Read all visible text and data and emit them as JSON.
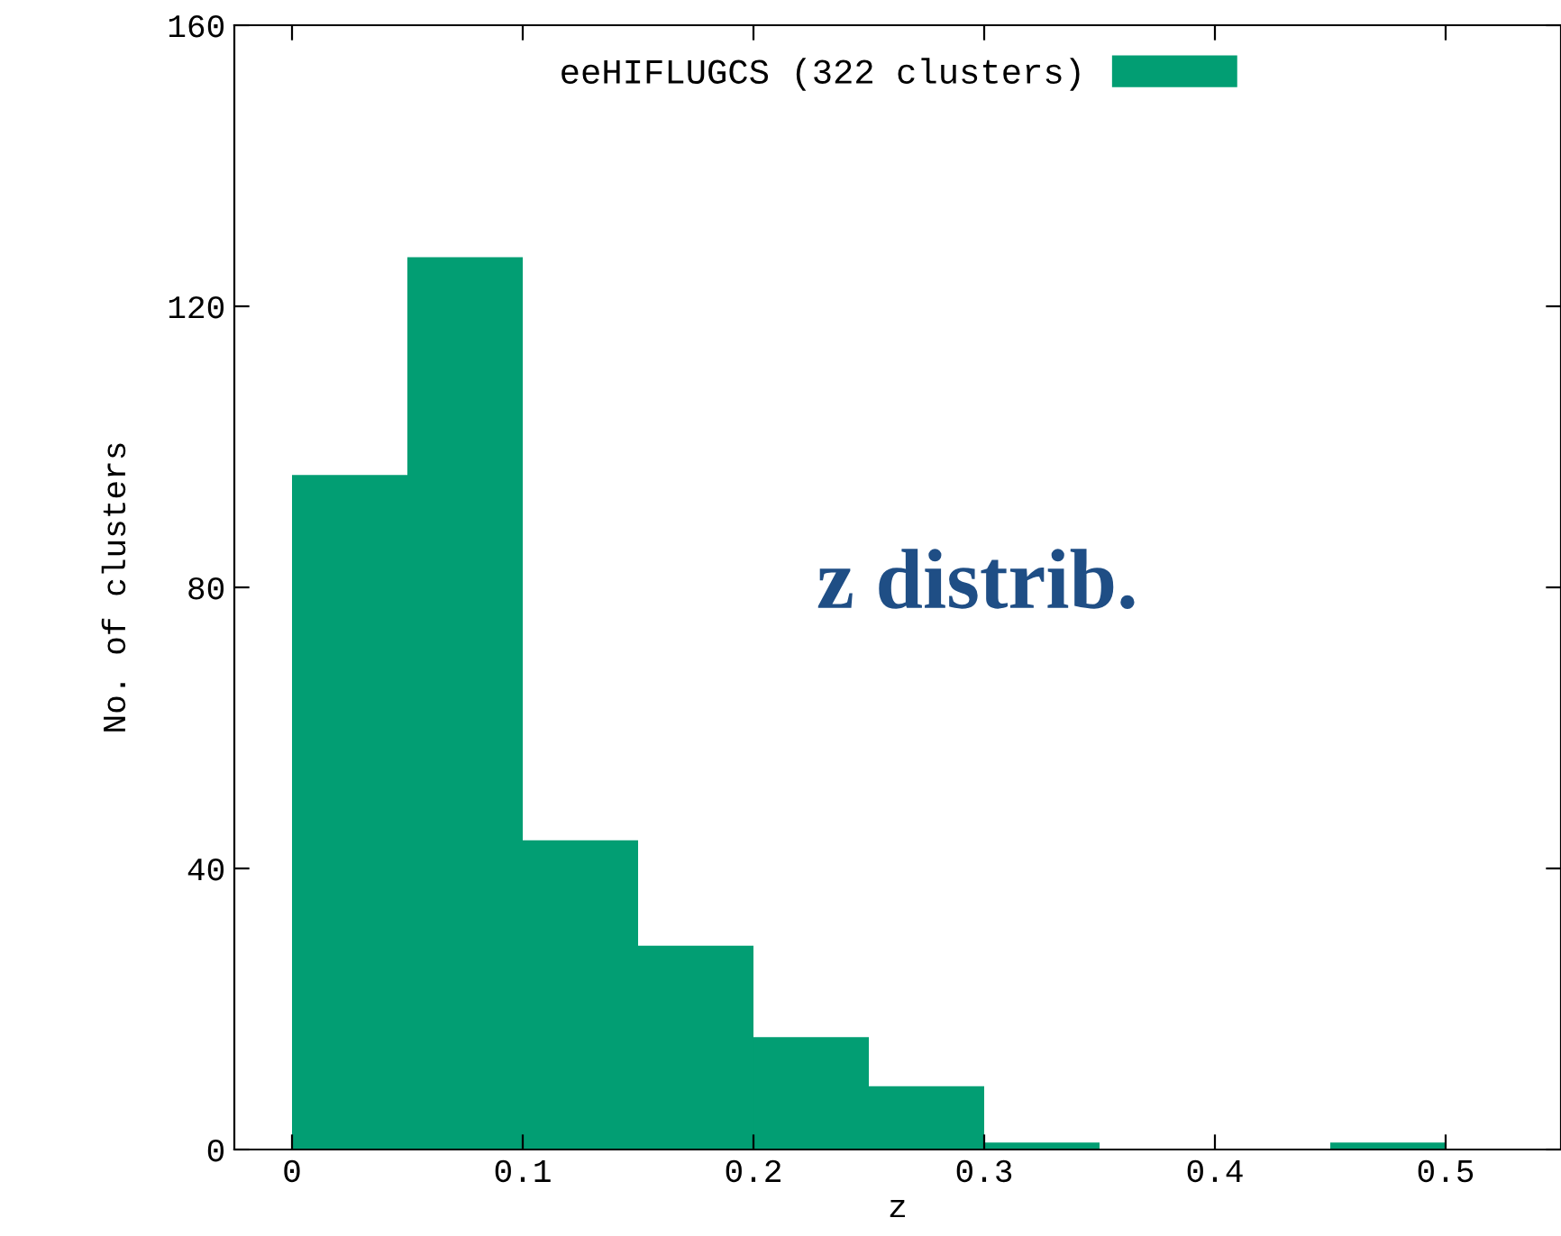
{
  "chart_data": {
    "type": "histogram",
    "xlabel": "z",
    "ylabel": "No. of clusters",
    "bins": [
      0,
      0.05,
      0.1,
      0.15,
      0.2,
      0.25,
      0.3,
      0.35,
      0.4,
      0.45,
      0.5
    ],
    "series": [
      {
        "name": "eeHIFLUGCS (322 clusters)",
        "color": "#029e73",
        "values": [
          96,
          127,
          44,
          29,
          16,
          9,
          1,
          0,
          0,
          1
        ]
      }
    ],
    "xlim": [
      -0.025,
      0.55
    ],
    "xticks": [
      0,
      0.1,
      0.2,
      0.3,
      0.4,
      0.5
    ],
    "ylim": [
      0,
      160
    ],
    "yticks": [
      0,
      40,
      80,
      120,
      160
    ],
    "grid": false,
    "legend": "top",
    "annotations": [
      "z distrib."
    ]
  }
}
